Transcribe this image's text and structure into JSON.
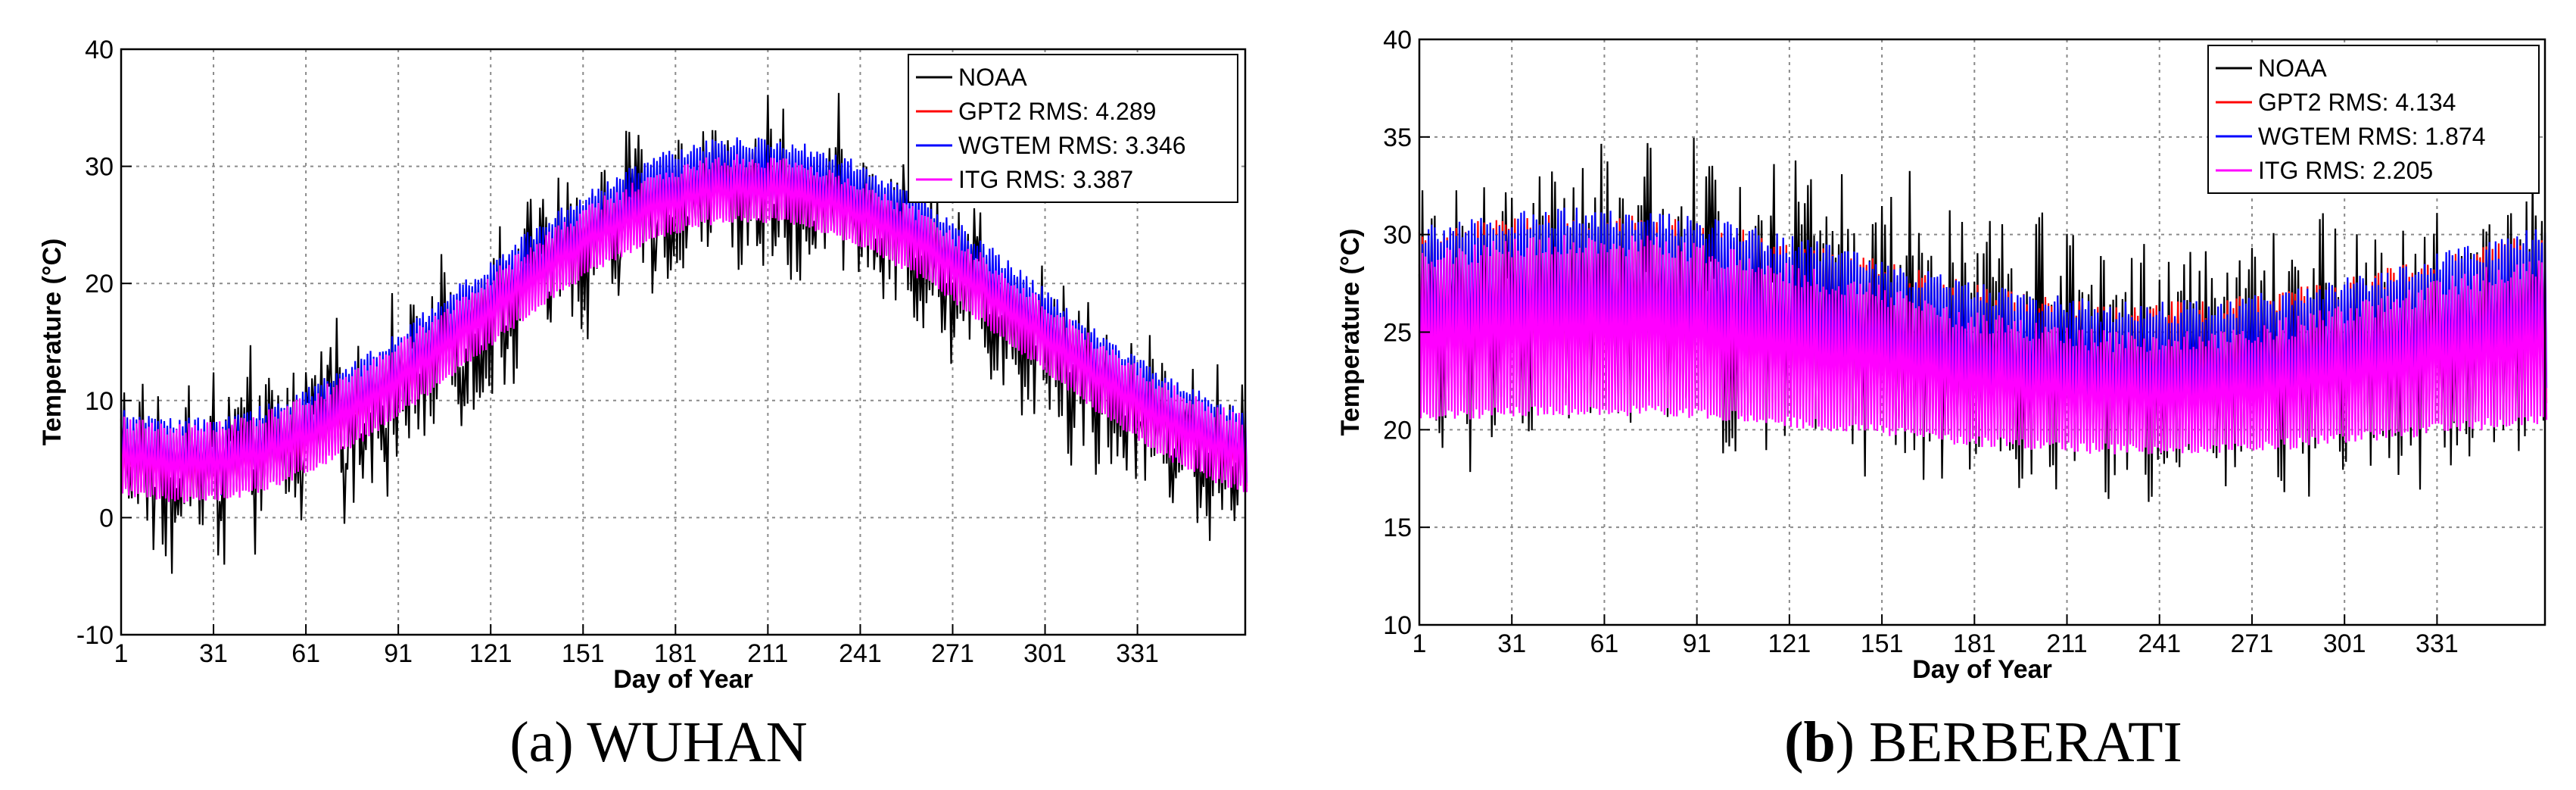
{
  "chart_data": [
    {
      "type": "line",
      "panel": "a",
      "caption_letter": "(a)",
      "caption_name": "WUHAN",
      "xlabel": "Day of Year",
      "ylabel": "Temperature (°C)",
      "xlim": [
        1,
        366
      ],
      "ylim": [
        -10,
        40
      ],
      "x_ticks": [
        1,
        31,
        61,
        91,
        121,
        151,
        181,
        211,
        241,
        271,
        301,
        331
      ],
      "y_ticks": [
        -10,
        0,
        10,
        20,
        30,
        40
      ],
      "grid": true,
      "legend_position": "top-right",
      "series": [
        {
          "name": "NOAA",
          "color": "#000000",
          "kind": "noisy",
          "mean_min": 4,
          "mean_max": 28,
          "peak_day": 205,
          "noise": 4.5,
          "daily_amplitude": 4
        },
        {
          "name": "GPT2 RMS: 4.289",
          "color": "#ff0000",
          "kind": "band",
          "low_min": 2,
          "low_max": 27,
          "high_min": 7,
          "high_max": 31,
          "peak_day": 205
        },
        {
          "name": "WGTEM RMS: 3.346",
          "color": "#0000ff",
          "kind": "band",
          "low_min": 2,
          "low_max": 26,
          "high_min": 8,
          "high_max": 32,
          "peak_day": 205
        },
        {
          "name": "ITG RMS: 3.387",
          "color": "#ff00ff",
          "kind": "band",
          "low_min": 1.5,
          "low_max": 25.5,
          "high_min": 7.5,
          "high_max": 30.5,
          "peak_day": 205
        }
      ]
    },
    {
      "type": "line",
      "panel": "b",
      "caption_letter": "(b)",
      "caption_name": "BERBERATI",
      "xlabel": "Day of Year",
      "ylabel": "Temperature (°C)",
      "xlim": [
        1,
        366
      ],
      "ylim": [
        10,
        40
      ],
      "x_ticks": [
        1,
        31,
        61,
        91,
        121,
        151,
        181,
        211,
        241,
        271,
        301,
        331
      ],
      "y_ticks": [
        10,
        15,
        20,
        25,
        30,
        35,
        40
      ],
      "grid": true,
      "legend_position": "top-right",
      "series": [
        {
          "name": "NOAA",
          "color": "#000000",
          "kind": "noisy",
          "mean_min": 23,
          "mean_max": 27,
          "peak_day": 75,
          "noise": 3.2,
          "daily_amplitude": 5
        },
        {
          "name": "GPT2 RMS: 4.134",
          "color": "#ff0000",
          "kind": "band",
          "low_min": 20,
          "low_max": 22,
          "high_min": 26,
          "high_max": 30.5,
          "peak_day": 55
        },
        {
          "name": "WGTEM RMS: 1.874",
          "color": "#0000ff",
          "kind": "band",
          "low_min": 20,
          "low_max": 22.5,
          "high_min": 26,
          "high_max": 30.8,
          "peak_day": 55
        },
        {
          "name": "ITG RMS: 2.205",
          "color": "#ff00ff",
          "kind": "band",
          "low_min": 19,
          "low_max": 21,
          "high_min": 24.5,
          "high_max": 29.5,
          "peak_day": 55
        }
      ]
    }
  ]
}
